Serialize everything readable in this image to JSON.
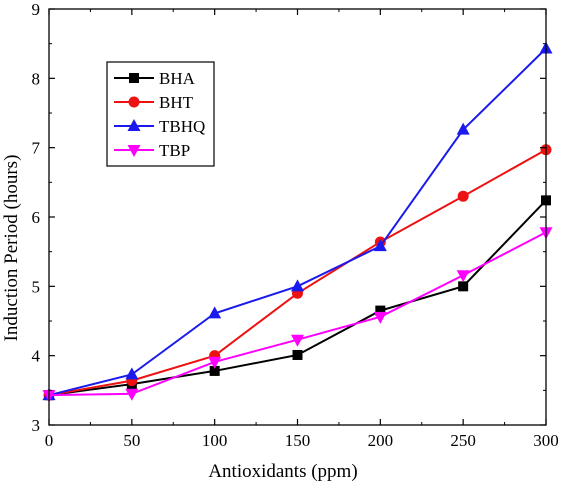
{
  "chart_data": {
    "type": "line",
    "xlabel": "Antioxidants (ppm)",
    "ylabel": "Induction Period (hours)",
    "x": [
      0,
      50,
      100,
      150,
      200,
      250,
      300
    ],
    "x_ticks": [
      "0",
      "50",
      "100",
      "150",
      "200",
      "250",
      "300"
    ],
    "y_ticks": [
      "3",
      "4",
      "5",
      "6",
      "7",
      "8",
      "9"
    ],
    "xlim": [
      0,
      300
    ],
    "ylim": [
      3,
      9
    ],
    "grid": false,
    "legend_position": "top-left",
    "series": [
      {
        "name": "BHA",
        "color": "#000000",
        "marker": "square",
        "values": [
          3.43,
          3.59,
          3.78,
          4.01,
          4.65,
          5.0,
          6.24
        ]
      },
      {
        "name": "BHT",
        "color": "#ee1111",
        "marker": "circle",
        "values": [
          3.43,
          3.64,
          4.0,
          4.9,
          5.64,
          6.3,
          6.97
        ]
      },
      {
        "name": "TBHQ",
        "color": "#1a1aee",
        "marker": "triangle-up",
        "values": [
          3.43,
          3.73,
          4.61,
          5.0,
          5.58,
          7.26,
          8.43
        ]
      },
      {
        "name": "TBP",
        "color": "#ff00ff",
        "marker": "triangle-down",
        "values": [
          3.43,
          3.45,
          3.91,
          4.23,
          4.56,
          5.16,
          5.78
        ]
      }
    ]
  }
}
